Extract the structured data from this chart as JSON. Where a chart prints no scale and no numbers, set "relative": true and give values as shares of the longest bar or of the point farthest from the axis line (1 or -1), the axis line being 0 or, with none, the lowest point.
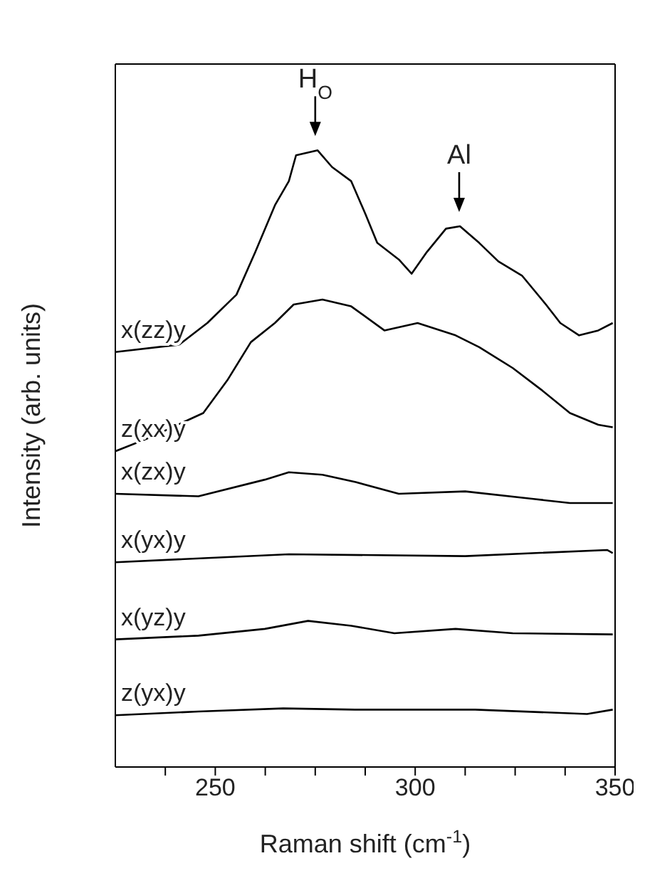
{
  "chart_data": {
    "type": "line",
    "xlabel": "Raman shift (cm$^{-1}$)",
    "ylabel": "Intensity (arb. units)",
    "relative": true,
    "xlim": [
      225,
      350
    ],
    "xticks": [
      {
        "value": 237.5,
        "label": null
      },
      250,
      {
        "value": 262.5,
        "label": null
      },
      {
        "value": 275,
        "label": null
      },
      {
        "value": 287.5,
        "label": null
      },
      300,
      {
        "value": 312.5,
        "label": null
      },
      {
        "value": 325,
        "label": null
      },
      {
        "value": 337.5,
        "label": null
      },
      350
    ],
    "annotations": [
      {
        "text": "H$_{O}$",
        "x": 275,
        "y": 1.0
      },
      {
        "text": "Al",
        "x": 311,
        "y": 0.877
      }
    ],
    "series": [
      {
        "name": "x(zz)y",
        "color": "#000000",
        "x": [
          225,
          241,
          248,
          255.3,
          260,
          265,
          268.4,
          270.2,
          275.6,
          279.2,
          284,
          287.6,
          290.5,
          295.9,
          299.1,
          302.9,
          307.7,
          311.2,
          316,
          320.8,
          326.7,
          332.7,
          336.3,
          341,
          345.8,
          349.4
        ],
        "values": [
          0.673,
          0.685,
          0.72,
          0.766,
          0.835,
          0.912,
          0.95,
          0.992,
          1.0,
          0.973,
          0.95,
          0.896,
          0.85,
          0.823,
          0.8,
          0.835,
          0.873,
          0.877,
          0.85,
          0.82,
          0.797,
          0.75,
          0.72,
          0.7,
          0.708,
          0.72
        ]
      },
      {
        "name": "z(xx)y",
        "color": "#000000",
        "x": [
          225,
          233.9,
          247,
          253,
          258.9,
          264.9,
          269.6,
          276.8,
          284,
          292.3,
          300.6,
          310.1,
          316,
          324.4,
          331.5,
          338.7,
          345.8,
          349.4
        ],
        "values": [
          0.512,
          0.535,
          0.574,
          0.627,
          0.689,
          0.72,
          0.75,
          0.758,
          0.747,
          0.708,
          0.72,
          0.7,
          0.681,
          0.647,
          0.612,
          0.574,
          0.555,
          0.551
        ]
      },
      {
        "name": "x(zx)y",
        "color": "#000000",
        "x": [
          225,
          245.8,
          262.4,
          268.4,
          276.8,
          285.1,
          295.9,
          312.5,
          329.2,
          338.7,
          349.4
        ],
        "values": [
          0.443,
          0.439,
          0.466,
          0.478,
          0.474,
          0.462,
          0.443,
          0.447,
          0.435,
          0.428,
          0.428
        ]
      },
      {
        "name": "x(yx)y",
        "color": "#000000",
        "x": [
          225,
          268.4,
          312.5,
          348,
          349.4
        ],
        "values": [
          0.332,
          0.345,
          0.342,
          0.352,
          0.347
        ]
      },
      {
        "name": "x(yz)y",
        "color": "#000000",
        "x": [
          225,
          245.8,
          262.4,
          273.2,
          284,
          294.8,
          310.1,
          324.4,
          349.4
        ],
        "values": [
          0.207,
          0.213,
          0.224,
          0.237,
          0.229,
          0.217,
          0.224,
          0.217,
          0.215
        ]
      },
      {
        "name": "z(yx)y",
        "color": "#000000",
        "x": [
          225,
          245.8,
          267,
          285,
          315,
          343,
          349.4
        ],
        "values": [
          0.084,
          0.09,
          0.095,
          0.093,
          0.093,
          0.086,
          0.093
        ]
      }
    ]
  }
}
